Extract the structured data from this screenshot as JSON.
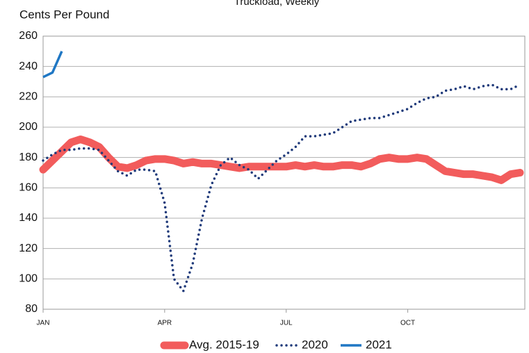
{
  "chart_data": {
    "type": "line",
    "title": "Truckload, Weekly",
    "y_label": "Cents Per Pound",
    "categories": [
      "JAN",
      null,
      null,
      null,
      null,
      null,
      null,
      null,
      null,
      null,
      null,
      null,
      null,
      "APR",
      null,
      null,
      null,
      null,
      null,
      null,
      null,
      null,
      null,
      null,
      null,
      null,
      "JUL",
      null,
      null,
      null,
      null,
      null,
      null,
      null,
      null,
      null,
      null,
      null,
      null,
      "OCT",
      null,
      null,
      null,
      null,
      null,
      null,
      null,
      null,
      null,
      null,
      null,
      null
    ],
    "series": [
      {
        "name": "Avg. 2015-19",
        "color": "#f25c5c",
        "style": "thick",
        "values": [
          172,
          178,
          184,
          190,
          192,
          190,
          187,
          180,
          174,
          173,
          175,
          178,
          179,
          179,
          178,
          176,
          177,
          176,
          176,
          175,
          174,
          173,
          174,
          174,
          174,
          174,
          174,
          175,
          174,
          175,
          174,
          174,
          175,
          175,
          174,
          176,
          179,
          180,
          179,
          179,
          180,
          179,
          175,
          171,
          170,
          169,
          169,
          168,
          167,
          165,
          169,
          170
        ]
      },
      {
        "name": "2020",
        "color": "#1f3a7a",
        "style": "dotted",
        "values": [
          178,
          182,
          185,
          185,
          186,
          186,
          185,
          178,
          171,
          168,
          172,
          172,
          171,
          150,
          100,
          92,
          110,
          140,
          162,
          175,
          180,
          175,
          172,
          166,
          172,
          178,
          182,
          187,
          194,
          194,
          195,
          196,
          200,
          204,
          205,
          206,
          206,
          208,
          210,
          212,
          216,
          219,
          220,
          224,
          225,
          227,
          225,
          227,
          228,
          225,
          225,
          228
        ]
      },
      {
        "name": "2021",
        "color": "#1f77c4",
        "style": "solid",
        "values": [
          233,
          236,
          250,
          null,
          null,
          null,
          null,
          null,
          null,
          null,
          null,
          null,
          null,
          null,
          null,
          null,
          null,
          null,
          null,
          null,
          null,
          null,
          null,
          null,
          null,
          null,
          null,
          null,
          null,
          null,
          null,
          null,
          null,
          null,
          null,
          null,
          null,
          null,
          null,
          null,
          null,
          null,
          null,
          null,
          null,
          null,
          null,
          null,
          null,
          null,
          null,
          null
        ]
      }
    ],
    "ylim": [
      80,
      260
    ],
    "yticks": [
      80,
      100,
      120,
      140,
      160,
      180,
      200,
      220,
      240,
      260
    ],
    "grid": true,
    "legend": "bottom"
  }
}
